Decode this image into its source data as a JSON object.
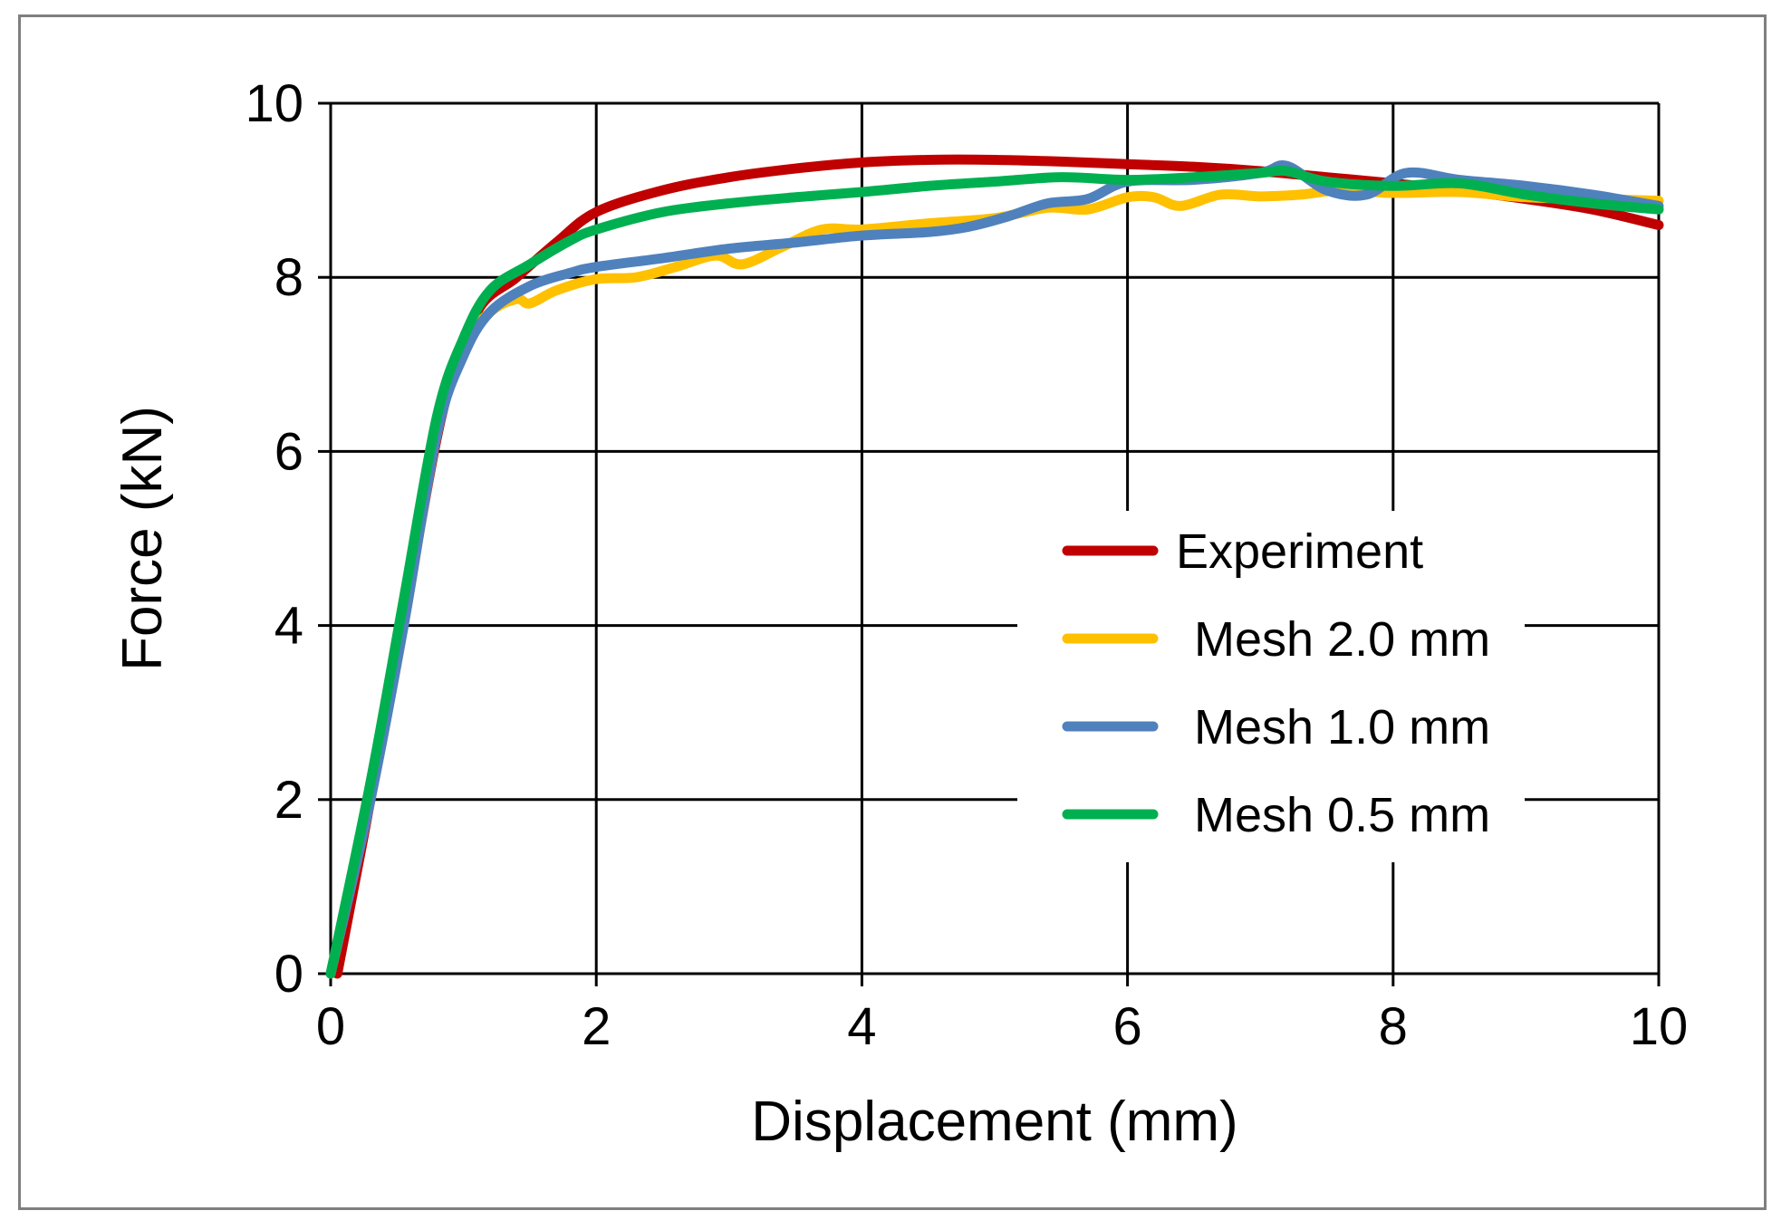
{
  "chart_data": {
    "type": "line",
    "title": "",
    "xlabel": "Displacement (mm)",
    "ylabel": "Force (kN)",
    "xlim": [
      0,
      10
    ],
    "ylim": [
      0,
      10
    ],
    "x_ticks": [
      "0",
      "2",
      "4",
      "6",
      "8",
      "10"
    ],
    "y_ticks": [
      "0",
      "2",
      "4",
      "6",
      "8",
      "10"
    ],
    "x_tick_values": [
      0,
      2,
      4,
      6,
      8,
      10
    ],
    "y_tick_values": [
      0,
      2,
      4,
      6,
      8,
      10
    ],
    "grid": true,
    "legend_position": "right-center",
    "series": [
      {
        "name": "Experiment",
        "color": "#c00000",
        "points": [
          [
            0.05,
            0
          ],
          [
            0.3,
            2
          ],
          [
            0.6,
            4.5
          ],
          [
            0.85,
            6.5
          ],
          [
            1.1,
            7.6
          ],
          [
            1.4,
            8.0
          ],
          [
            1.7,
            8.4
          ],
          [
            2.0,
            8.75
          ],
          [
            2.5,
            9.0
          ],
          [
            3.0,
            9.15
          ],
          [
            3.5,
            9.25
          ],
          [
            4.0,
            9.32
          ],
          [
            4.5,
            9.35
          ],
          [
            5.0,
            9.35
          ],
          [
            5.5,
            9.33
          ],
          [
            6.0,
            9.3
          ],
          [
            6.5,
            9.27
          ],
          [
            7.0,
            9.22
          ],
          [
            7.5,
            9.15
          ],
          [
            8.0,
            9.08
          ],
          [
            8.5,
            9.0
          ],
          [
            9.0,
            8.9
          ],
          [
            9.5,
            8.78
          ],
          [
            10.0,
            8.6
          ]
        ]
      },
      {
        "name": "Mesh 2.0 mm",
        "color": "#ffc000",
        "points": [
          [
            0.0,
            0
          ],
          [
            0.3,
            2
          ],
          [
            0.55,
            4
          ],
          [
            0.8,
            6.2
          ],
          [
            1.0,
            7.2
          ],
          [
            1.2,
            7.6
          ],
          [
            1.4,
            7.75
          ],
          [
            1.5,
            7.7
          ],
          [
            1.7,
            7.85
          ],
          [
            2.0,
            7.98
          ],
          [
            2.3,
            8.0
          ],
          [
            2.6,
            8.12
          ],
          [
            2.9,
            8.25
          ],
          [
            3.1,
            8.15
          ],
          [
            3.4,
            8.35
          ],
          [
            3.7,
            8.55
          ],
          [
            4.0,
            8.55
          ],
          [
            4.5,
            8.62
          ],
          [
            5.0,
            8.68
          ],
          [
            5.4,
            8.8
          ],
          [
            5.7,
            8.78
          ],
          [
            6.0,
            8.92
          ],
          [
            6.2,
            8.92
          ],
          [
            6.4,
            8.82
          ],
          [
            6.7,
            8.95
          ],
          [
            7.0,
            8.93
          ],
          [
            7.3,
            8.95
          ],
          [
            7.6,
            9.0
          ],
          [
            8.0,
            8.97
          ],
          [
            8.5,
            8.98
          ],
          [
            9.0,
            8.92
          ],
          [
            9.5,
            8.9
          ],
          [
            10.0,
            8.88
          ]
        ]
      },
      {
        "name": "Mesh 1.0 mm",
        "color": "#4f81bd",
        "points": [
          [
            0.0,
            0
          ],
          [
            0.3,
            2
          ],
          [
            0.55,
            4
          ],
          [
            0.8,
            6.2
          ],
          [
            1.0,
            7.1
          ],
          [
            1.2,
            7.6
          ],
          [
            1.5,
            7.9
          ],
          [
            1.8,
            8.05
          ],
          [
            2.0,
            8.12
          ],
          [
            2.5,
            8.22
          ],
          [
            3.0,
            8.33
          ],
          [
            3.5,
            8.4
          ],
          [
            4.0,
            8.48
          ],
          [
            4.5,
            8.52
          ],
          [
            4.8,
            8.58
          ],
          [
            5.1,
            8.7
          ],
          [
            5.4,
            8.85
          ],
          [
            5.7,
            8.9
          ],
          [
            6.0,
            9.1
          ],
          [
            6.5,
            9.12
          ],
          [
            7.0,
            9.2
          ],
          [
            7.2,
            9.28
          ],
          [
            7.5,
            9.0
          ],
          [
            7.8,
            8.95
          ],
          [
            8.1,
            9.2
          ],
          [
            8.5,
            9.12
          ],
          [
            9.0,
            9.05
          ],
          [
            9.5,
            8.95
          ],
          [
            10.0,
            8.82
          ]
        ]
      },
      {
        "name": "Mesh 0.5 mm",
        "color": "#00b050",
        "points": [
          [
            0.0,
            0
          ],
          [
            0.3,
            2.2
          ],
          [
            0.55,
            4.3
          ],
          [
            0.8,
            6.4
          ],
          [
            1.0,
            7.3
          ],
          [
            1.2,
            7.85
          ],
          [
            1.5,
            8.15
          ],
          [
            1.8,
            8.42
          ],
          [
            2.0,
            8.55
          ],
          [
            2.5,
            8.75
          ],
          [
            3.0,
            8.85
          ],
          [
            3.5,
            8.92
          ],
          [
            4.0,
            8.98
          ],
          [
            4.5,
            9.05
          ],
          [
            5.0,
            9.1
          ],
          [
            5.5,
            9.15
          ],
          [
            6.0,
            9.12
          ],
          [
            6.5,
            9.15
          ],
          [
            7.0,
            9.2
          ],
          [
            7.2,
            9.22
          ],
          [
            7.5,
            9.1
          ],
          [
            8.0,
            9.05
          ],
          [
            8.5,
            9.08
          ],
          [
            9.0,
            8.95
          ],
          [
            9.5,
            8.85
          ],
          [
            10.0,
            8.78
          ]
        ]
      }
    ]
  }
}
